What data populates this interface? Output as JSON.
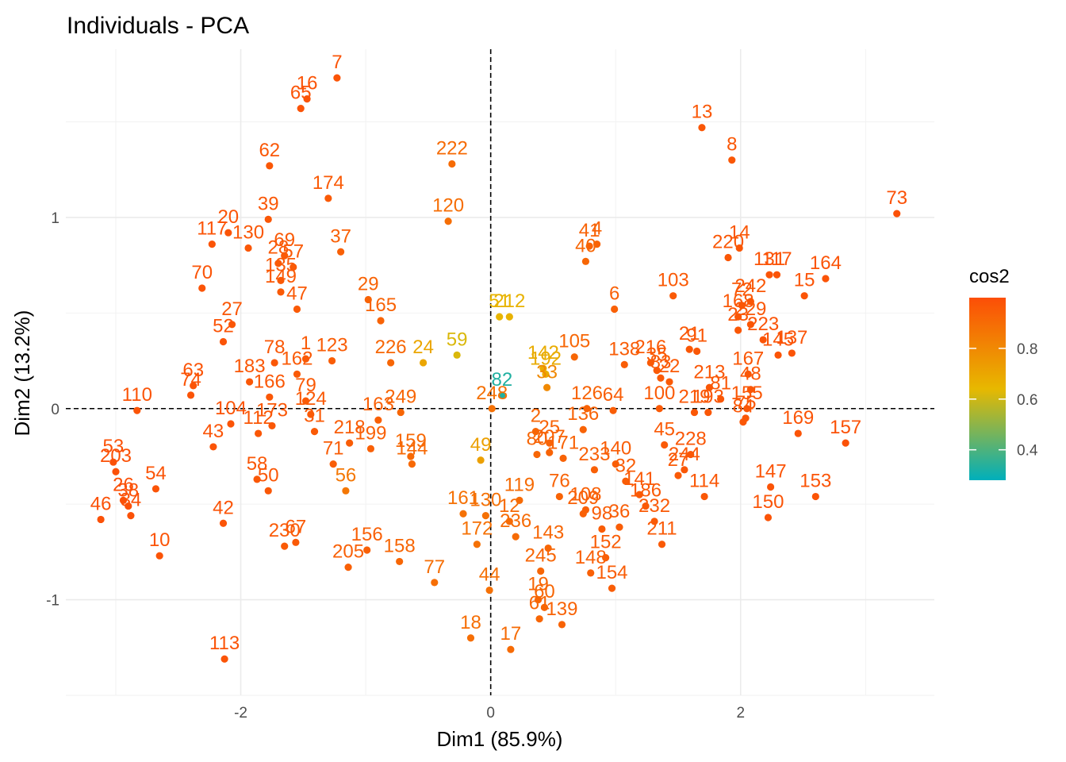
{
  "chart_data": {
    "type": "scatter",
    "title": "Individuals - PCA",
    "xlabel": "Dim1 (85.9%)",
    "ylabel": "Dim2 (13.2%)",
    "xlim": [
      -3.4,
      3.55
    ],
    "ylim": [
      -1.5,
      1.88
    ],
    "xticks": [
      -2,
      0,
      2
    ],
    "xtick_labels": [
      "-2",
      "0",
      "2"
    ],
    "yticks": [
      -1,
      0,
      1
    ],
    "yticks_labels": [
      "-1",
      "0",
      "1"
    ],
    "grid": true,
    "reference_lines": {
      "x": 0,
      "y": 0,
      "style": "dashed"
    },
    "legend": {
      "title": "cos2",
      "position": "right",
      "range": [
        0.28,
        1.0
      ],
      "ticks": [
        0.4,
        0.6,
        0.8
      ],
      "tick_labels": [
        "0.4",
        "0.6",
        "0.8"
      ],
      "colors": [
        "#00AFBB",
        "#E7B800",
        "#FC4E07"
      ]
    },
    "points": [
      {
        "id": "7",
        "x": -1.23,
        "y": 1.73,
        "cos2": 0.98
      },
      {
        "id": "16",
        "x": -1.47,
        "y": 1.62,
        "cos2": 0.98
      },
      {
        "id": "65",
        "x": -1.52,
        "y": 1.57,
        "cos2": 0.98
      },
      {
        "id": "62",
        "x": -1.77,
        "y": 1.27,
        "cos2": 0.97
      },
      {
        "id": "174",
        "x": -1.3,
        "y": 1.1,
        "cos2": 0.96
      },
      {
        "id": "39",
        "x": -1.78,
        "y": 0.99,
        "cos2": 0.97
      },
      {
        "id": "20",
        "x": -2.1,
        "y": 0.92,
        "cos2": 0.98
      },
      {
        "id": "117",
        "x": -2.23,
        "y": 0.86,
        "cos2": 0.98
      },
      {
        "id": "130",
        "x": -1.94,
        "y": 0.84,
        "cos2": 0.97
      },
      {
        "id": "69",
        "x": -1.65,
        "y": 0.8,
        "cos2": 0.96
      },
      {
        "id": "28",
        "x": -1.7,
        "y": 0.76,
        "cos2": 0.96
      },
      {
        "id": "37",
        "x": -1.2,
        "y": 0.82,
        "cos2": 0.94
      },
      {
        "id": "57",
        "x": -1.58,
        "y": 0.74,
        "cos2": 0.96
      },
      {
        "id": "135",
        "x": -1.68,
        "y": 0.67,
        "cos2": 0.96
      },
      {
        "id": "149",
        "x": -1.68,
        "y": 0.61,
        "cos2": 0.96
      },
      {
        "id": "47",
        "x": -1.55,
        "y": 0.52,
        "cos2": 0.96
      },
      {
        "id": "70",
        "x": -2.31,
        "y": 0.63,
        "cos2": 0.98
      },
      {
        "id": "27",
        "x": -2.07,
        "y": 0.44,
        "cos2": 0.97
      },
      {
        "id": "52",
        "x": -2.14,
        "y": 0.35,
        "cos2": 0.98
      },
      {
        "id": "78",
        "x": -1.73,
        "y": 0.24,
        "cos2": 0.97
      },
      {
        "id": "1",
        "x": -1.48,
        "y": 0.26,
        "cos2": 0.96
      },
      {
        "id": "123",
        "x": -1.27,
        "y": 0.25,
        "cos2": 0.95
      },
      {
        "id": "162",
        "x": -1.55,
        "y": 0.18,
        "cos2": 0.96
      },
      {
        "id": "183",
        "x": -1.93,
        "y": 0.14,
        "cos2": 0.97
      },
      {
        "id": "166",
        "x": -1.77,
        "y": 0.06,
        "cos2": 0.97
      },
      {
        "id": "63",
        "x": -2.38,
        "y": 0.12,
        "cos2": 0.98
      },
      {
        "id": "74",
        "x": -2.4,
        "y": 0.07,
        "cos2": 0.98
      },
      {
        "id": "79",
        "x": -1.48,
        "y": 0.04,
        "cos2": 0.96
      },
      {
        "id": "110",
        "x": -2.83,
        "y": -0.01,
        "cos2": 0.98
      },
      {
        "id": "104",
        "x": -2.08,
        "y": -0.08,
        "cos2": 0.98
      },
      {
        "id": "173",
        "x": -1.75,
        "y": -0.09,
        "cos2": 0.97
      },
      {
        "id": "124",
        "x": -1.44,
        "y": -0.03,
        "cos2": 0.96
      },
      {
        "id": "31",
        "x": -1.41,
        "y": -0.12,
        "cos2": 0.96
      },
      {
        "id": "218",
        "x": -1.13,
        "y": -0.18,
        "cos2": 0.95
      },
      {
        "id": "71",
        "x": -1.26,
        "y": -0.29,
        "cos2": 0.95
      },
      {
        "id": "199",
        "x": -0.96,
        "y": -0.21,
        "cos2": 0.94
      },
      {
        "id": "163",
        "x": -0.9,
        "y": -0.06,
        "cos2": 0.94
      },
      {
        "id": "249",
        "x": -0.72,
        "y": -0.02,
        "cos2": 0.92
      },
      {
        "id": "43",
        "x": -2.22,
        "y": -0.2,
        "cos2": 0.98
      },
      {
        "id": "112",
        "x": -1.86,
        "y": -0.13,
        "cos2": 0.97
      },
      {
        "id": "58",
        "x": -1.87,
        "y": -0.37,
        "cos2": 0.97
      },
      {
        "id": "50",
        "x": -1.78,
        "y": -0.43,
        "cos2": 0.97
      },
      {
        "id": "56",
        "x": -1.16,
        "y": -0.43,
        "cos2": 0.86
      },
      {
        "id": "159",
        "x": -0.64,
        "y": -0.25,
        "cos2": 0.91
      },
      {
        "id": "144",
        "x": -0.63,
        "y": -0.29,
        "cos2": 0.91
      },
      {
        "id": "53",
        "x": -3.02,
        "y": -0.28,
        "cos2": 0.99
      },
      {
        "id": "203",
        "x": -3.0,
        "y": -0.33,
        "cos2": 0.99
      },
      {
        "id": "54",
        "x": -2.68,
        "y": -0.42,
        "cos2": 0.98
      },
      {
        "id": "26",
        "x": -2.94,
        "y": -0.48,
        "cos2": 0.99
      },
      {
        "id": "38",
        "x": -2.9,
        "y": -0.51,
        "cos2": 0.99
      },
      {
        "id": "46",
        "x": -3.12,
        "y": -0.58,
        "cos2": 0.99
      },
      {
        "id": "34",
        "x": -2.88,
        "y": -0.56,
        "cos2": 0.99
      },
      {
        "id": "10",
        "x": -2.65,
        "y": -0.77,
        "cos2": 0.98
      },
      {
        "id": "42",
        "x": -2.14,
        "y": -0.6,
        "cos2": 0.98
      },
      {
        "id": "67",
        "x": -1.56,
        "y": -0.7,
        "cos2": 0.96
      },
      {
        "id": "230",
        "x": -1.65,
        "y": -0.72,
        "cos2": 0.96
      },
      {
        "id": "156",
        "x": -0.99,
        "y": -0.74,
        "cos2": 0.94
      },
      {
        "id": "205",
        "x": -1.14,
        "y": -0.83,
        "cos2": 0.94
      },
      {
        "id": "158",
        "x": -0.73,
        "y": -0.8,
        "cos2": 0.92
      },
      {
        "id": "77",
        "x": -0.45,
        "y": -0.91,
        "cos2": 0.89
      },
      {
        "id": "113",
        "x": -2.13,
        "y": -1.31,
        "cos2": 0.98
      },
      {
        "id": "222",
        "x": -0.31,
        "y": 1.28,
        "cos2": 0.9
      },
      {
        "id": "120",
        "x": -0.34,
        "y": 0.98,
        "cos2": 0.89
      },
      {
        "id": "29",
        "x": -0.98,
        "y": 0.57,
        "cos2": 0.93
      },
      {
        "id": "165",
        "x": -0.88,
        "y": 0.46,
        "cos2": 0.93
      },
      {
        "id": "226",
        "x": -0.8,
        "y": 0.24,
        "cos2": 0.92
      },
      {
        "id": "24",
        "x": -0.54,
        "y": 0.24,
        "cos2": 0.7
      },
      {
        "id": "59",
        "x": -0.27,
        "y": 0.28,
        "cos2": 0.62
      },
      {
        "id": "51",
        "x": 0.07,
        "y": 0.48,
        "cos2": 0.65
      },
      {
        "id": "212",
        "x": 0.15,
        "y": 0.48,
        "cos2": 0.66
      },
      {
        "id": "82",
        "x": 0.09,
        "y": 0.07,
        "cos2": 0.33
      },
      {
        "id": "248",
        "x": 0.01,
        "y": 0.0,
        "cos2": 0.88
      },
      {
        "id": "142",
        "x": 0.42,
        "y": 0.21,
        "cos2": 0.68
      },
      {
        "id": "192",
        "x": 0.44,
        "y": 0.18,
        "cos2": 0.68
      },
      {
        "id": "33",
        "x": 0.45,
        "y": 0.11,
        "cos2": 0.8
      },
      {
        "id": "105",
        "x": 0.67,
        "y": 0.27,
        "cos2": 0.92
      },
      {
        "id": "49",
        "x": -0.08,
        "y": -0.27,
        "cos2": 0.72
      },
      {
        "id": "126",
        "x": 0.77,
        "y": 0.0,
        "cos2": 0.93
      },
      {
        "id": "64",
        "x": 0.98,
        "y": -0.01,
        "cos2": 0.95
      },
      {
        "id": "136",
        "x": 0.74,
        "y": -0.11,
        "cos2": 0.93
      },
      {
        "id": "2",
        "x": 0.36,
        "y": -0.12,
        "cos2": 0.92
      },
      {
        "id": "25",
        "x": 0.47,
        "y": -0.18,
        "cos2": 0.93
      },
      {
        "id": "80",
        "x": 0.37,
        "y": -0.24,
        "cos2": 0.92
      },
      {
        "id": "207",
        "x": 0.47,
        "y": -0.23,
        "cos2": 0.93
      },
      {
        "id": "171",
        "x": 0.58,
        "y": -0.26,
        "cos2": 0.93
      },
      {
        "id": "233",
        "x": 0.83,
        "y": -0.32,
        "cos2": 0.94
      },
      {
        "id": "140",
        "x": 1.0,
        "y": -0.29,
        "cos2": 0.95
      },
      {
        "id": "32",
        "x": 1.08,
        "y": -0.38,
        "cos2": 0.95
      },
      {
        "id": "76",
        "x": 0.55,
        "y": -0.46,
        "cos2": 0.93
      },
      {
        "id": "119",
        "x": 0.23,
        "y": -0.48,
        "cos2": 0.9
      },
      {
        "id": "161",
        "x": -0.22,
        "y": -0.55,
        "cos2": 0.88
      },
      {
        "id": "130b",
        "x": -0.04,
        "y": -0.56,
        "cos2": 0.88
      },
      {
        "id": "12",
        "x": 0.15,
        "y": -0.59,
        "cos2": 0.9
      },
      {
        "id": "172",
        "x": -0.11,
        "y": -0.71,
        "cos2": 0.88
      },
      {
        "id": "236",
        "x": 0.2,
        "y": -0.67,
        "cos2": 0.9
      },
      {
        "id": "108",
        "x": 0.76,
        "y": -0.53,
        "cos2": 0.94
      },
      {
        "id": "209",
        "x": 0.74,
        "y": -0.55,
        "cos2": 0.94
      },
      {
        "id": "98",
        "x": 0.89,
        "y": -0.63,
        "cos2": 0.95
      },
      {
        "id": "141",
        "x": 1.19,
        "y": -0.45,
        "cos2": 0.96
      },
      {
        "id": "186",
        "x": 1.24,
        "y": -0.51,
        "cos2": 0.96
      },
      {
        "id": "36",
        "x": 1.03,
        "y": -0.62,
        "cos2": 0.95
      },
      {
        "id": "232",
        "x": 1.31,
        "y": -0.59,
        "cos2": 0.96
      },
      {
        "id": "211",
        "x": 1.37,
        "y": -0.71,
        "cos2": 0.96
      },
      {
        "id": "143",
        "x": 0.46,
        "y": -0.73,
        "cos2": 0.92
      },
      {
        "id": "245",
        "x": 0.4,
        "y": -0.85,
        "cos2": 0.92
      },
      {
        "id": "152",
        "x": 0.92,
        "y": -0.78,
        "cos2": 0.95
      },
      {
        "id": "148",
        "x": 0.8,
        "y": -0.86,
        "cos2": 0.94
      },
      {
        "id": "154",
        "x": 0.97,
        "y": -0.94,
        "cos2": 0.95
      },
      {
        "id": "44",
        "x": -0.01,
        "y": -0.95,
        "cos2": 0.88
      },
      {
        "id": "19",
        "x": 0.38,
        "y": -1.0,
        "cos2": 0.92
      },
      {
        "id": "60",
        "x": 0.43,
        "y": -1.04,
        "cos2": 0.92
      },
      {
        "id": "61",
        "x": 0.39,
        "y": -1.1,
        "cos2": 0.92
      },
      {
        "id": "139",
        "x": 0.57,
        "y": -1.13,
        "cos2": 0.93
      },
      {
        "id": "18",
        "x": -0.16,
        "y": -1.2,
        "cos2": 0.89
      },
      {
        "id": "17",
        "x": 0.16,
        "y": -1.26,
        "cos2": 0.9
      },
      {
        "id": "4",
        "x": 0.85,
        "y": 0.86,
        "cos2": 0.93
      },
      {
        "id": "41",
        "x": 0.79,
        "y": 0.85,
        "cos2": 0.93
      },
      {
        "id": "40",
        "x": 0.76,
        "y": 0.77,
        "cos2": 0.92
      },
      {
        "id": "6",
        "x": 0.99,
        "y": 0.52,
        "cos2": 0.94
      },
      {
        "id": "138",
        "x": 1.07,
        "y": 0.23,
        "cos2": 0.95
      },
      {
        "id": "103",
        "x": 1.46,
        "y": 0.59,
        "cos2": 0.96
      },
      {
        "id": "13",
        "x": 1.69,
        "y": 1.47,
        "cos2": 0.97
      },
      {
        "id": "8",
        "x": 1.93,
        "y": 1.3,
        "cos2": 0.97
      },
      {
        "id": "73",
        "x": 3.25,
        "y": 1.02,
        "cos2": 0.99
      },
      {
        "id": "220",
        "x": 1.9,
        "y": 0.79,
        "cos2": 0.97
      },
      {
        "id": "14",
        "x": 1.99,
        "y": 0.84,
        "cos2": 0.97
      },
      {
        "id": "131",
        "x": 2.23,
        "y": 0.7,
        "cos2": 0.98
      },
      {
        "id": "117b",
        "x": 2.29,
        "y": 0.7,
        "cos2": 0.98
      },
      {
        "id": "164",
        "x": 2.68,
        "y": 0.68,
        "cos2": 0.98
      },
      {
        "id": "15",
        "x": 2.51,
        "y": 0.59,
        "cos2": 0.98
      },
      {
        "id": "242",
        "x": 2.08,
        "y": 0.56,
        "cos2": 0.97
      },
      {
        "id": "72",
        "x": 2.01,
        "y": 0.54,
        "cos2": 0.97
      },
      {
        "id": "168",
        "x": 1.98,
        "y": 0.48,
        "cos2": 0.97
      },
      {
        "id": "229",
        "x": 2.08,
        "y": 0.44,
        "cos2": 0.97
      },
      {
        "id": "23",
        "x": 1.98,
        "y": 0.41,
        "cos2": 0.97
      },
      {
        "id": "223",
        "x": 2.18,
        "y": 0.36,
        "cos2": 0.98
      },
      {
        "id": "145",
        "x": 2.3,
        "y": 0.28,
        "cos2": 0.98
      },
      {
        "id": "137",
        "x": 2.41,
        "y": 0.29,
        "cos2": 0.98
      },
      {
        "id": "91",
        "x": 1.65,
        "y": 0.3,
        "cos2": 0.97
      },
      {
        "id": "21",
        "x": 1.59,
        "y": 0.31,
        "cos2": 0.97
      },
      {
        "id": "167",
        "x": 2.06,
        "y": 0.18,
        "cos2": 0.97
      },
      {
        "id": "216",
        "x": 1.28,
        "y": 0.24,
        "cos2": 0.96
      },
      {
        "id": "35",
        "x": 1.33,
        "y": 0.2,
        "cos2": 0.96
      },
      {
        "id": "83",
        "x": 1.36,
        "y": 0.16,
        "cos2": 0.96
      },
      {
        "id": "22",
        "x": 1.43,
        "y": 0.14,
        "cos2": 0.96
      },
      {
        "id": "213",
        "x": 1.75,
        "y": 0.11,
        "cos2": 0.97
      },
      {
        "id": "81",
        "x": 1.84,
        "y": 0.05,
        "cos2": 0.97
      },
      {
        "id": "48",
        "x": 2.08,
        "y": 0.1,
        "cos2": 0.97
      },
      {
        "id": "100",
        "x": 1.35,
        "y": 0.0,
        "cos2": 0.96
      },
      {
        "id": "219",
        "x": 1.63,
        "y": -0.02,
        "cos2": 0.97
      },
      {
        "id": "193",
        "x": 1.74,
        "y": -0.02,
        "cos2": 0.97
      },
      {
        "id": "155",
        "x": 2.05,
        "y": 0.0,
        "cos2": 0.97
      },
      {
        "id": "75",
        "x": 2.04,
        "y": -0.05,
        "cos2": 0.97
      },
      {
        "id": "84",
        "x": 2.02,
        "y": -0.07,
        "cos2": 0.97
      },
      {
        "id": "169",
        "x": 2.46,
        "y": -0.13,
        "cos2": 0.98
      },
      {
        "id": "157",
        "x": 2.84,
        "y": -0.18,
        "cos2": 0.99
      },
      {
        "id": "45",
        "x": 1.39,
        "y": -0.19,
        "cos2": 0.96
      },
      {
        "id": "228",
        "x": 1.6,
        "y": -0.24,
        "cos2": 0.97
      },
      {
        "id": "244",
        "x": 1.55,
        "y": -0.32,
        "cos2": 0.97
      },
      {
        "id": "27b",
        "x": 1.5,
        "y": -0.35,
        "cos2": 0.96
      },
      {
        "id": "114",
        "x": 1.71,
        "y": -0.46,
        "cos2": 0.97
      },
      {
        "id": "147",
        "x": 2.24,
        "y": -0.41,
        "cos2": 0.98
      },
      {
        "id": "153",
        "x": 2.6,
        "y": -0.46,
        "cos2": 0.98
      },
      {
        "id": "150",
        "x": 2.22,
        "y": -0.57,
        "cos2": 0.98
      }
    ]
  }
}
